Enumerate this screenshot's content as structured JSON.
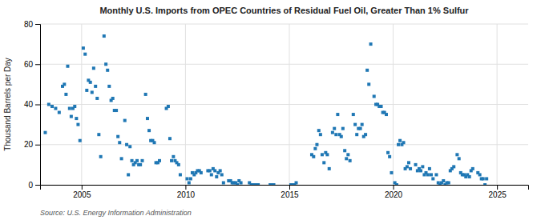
{
  "chart_data": {
    "type": "scatter",
    "title": "Monthly U.S. Imports from OPEC Countries of Residual Fuel Oil, Greater Than 1% Sulfur",
    "y_label": "Thousand Barrels per Day",
    "annotations": [
      "Source: U.S. Energy Information Administration"
    ],
    "marker": "square",
    "grid": true,
    "xlim": [
      2003.0,
      2026.5
    ],
    "xticks": [
      2005,
      2010,
      2015,
      2020,
      2025
    ],
    "ylim": [
      0,
      80
    ],
    "yticks": [
      0,
      20,
      40,
      60,
      80
    ],
    "x": [
      2003.25,
      2003.42,
      2003.58,
      2003.75,
      2003.92,
      2004.08,
      2004.17,
      2004.25,
      2004.33,
      2004.42,
      2004.5,
      2004.58,
      2004.67,
      2004.75,
      2004.83,
      2004.92,
      2005.08,
      2005.17,
      2005.25,
      2005.33,
      2005.42,
      2005.5,
      2005.58,
      2005.67,
      2005.75,
      2005.83,
      2005.92,
      2006.08,
      2006.17,
      2006.25,
      2006.33,
      2006.42,
      2006.5,
      2006.58,
      2006.67,
      2006.75,
      2006.83,
      2006.92,
      2007.08,
      2007.17,
      2007.25,
      2007.33,
      2007.42,
      2007.5,
      2007.58,
      2007.67,
      2007.75,
      2007.83,
      2007.92,
      2008.08,
      2008.17,
      2008.25,
      2008.33,
      2008.42,
      2008.5,
      2008.58,
      2008.67,
      2008.75,
      2009.08,
      2009.17,
      2009.25,
      2009.33,
      2009.42,
      2009.5,
      2009.58,
      2009.67,
      2009.75,
      2010.08,
      2010.17,
      2010.25,
      2010.33,
      2010.42,
      2010.5,
      2010.58,
      2010.67,
      2010.75,
      2011.08,
      2011.17,
      2011.25,
      2011.33,
      2011.42,
      2011.5,
      2011.58,
      2011.67,
      2011.75,
      2011.83,
      2012.08,
      2012.17,
      2012.25,
      2012.33,
      2012.42,
      2012.5,
      2012.58,
      2012.67,
      2013.08,
      2013.17,
      2013.25,
      2013.33,
      2013.42,
      2013.5,
      2014.08,
      2014.17,
      2014.25,
      2015.08,
      2015.17,
      2015.25,
      2015.33,
      2016.08,
      2016.17,
      2016.25,
      2016.33,
      2016.42,
      2016.5,
      2016.58,
      2016.67,
      2016.75,
      2016.83,
      2016.92,
      2017.08,
      2017.17,
      2017.25,
      2017.33,
      2017.42,
      2017.5,
      2017.58,
      2017.67,
      2017.75,
      2017.83,
      2017.92,
      2018.08,
      2018.17,
      2018.25,
      2018.33,
      2018.42,
      2018.5,
      2018.58,
      2018.67,
      2018.75,
      2018.83,
      2018.92,
      2019.08,
      2019.17,
      2019.25,
      2019.33,
      2019.42,
      2019.5,
      2019.58,
      2019.67,
      2019.75,
      2019.83,
      2019.92,
      2020.08,
      2020.17,
      2020.25,
      2020.33,
      2020.42,
      2020.5,
      2020.58,
      2020.67,
      2020.75,
      2020.83,
      2021.08,
      2021.17,
      2021.25,
      2021.33,
      2021.42,
      2021.5,
      2021.58,
      2021.67,
      2021.75,
      2021.83,
      2021.92,
      2022.08,
      2022.17,
      2022.25,
      2022.33,
      2022.42,
      2022.5,
      2022.58,
      2022.67,
      2022.75,
      2022.83,
      2022.92,
      2023.08,
      2023.17,
      2023.25,
      2023.33,
      2023.42,
      2023.5,
      2023.58,
      2023.67,
      2023.75,
      2023.83,
      2024.08,
      2024.17,
      2024.25,
      2024.33,
      2024.42,
      2024.5
    ],
    "values": [
      26,
      40,
      39,
      38,
      36,
      49,
      50,
      45,
      59,
      38,
      34,
      38,
      39,
      33,
      30,
      22,
      68,
      65,
      47,
      52,
      51,
      46,
      58,
      49,
      43,
      25,
      14,
      74,
      60,
      57,
      49,
      42,
      43,
      37,
      37,
      24,
      21,
      13,
      32,
      20,
      5,
      19,
      12,
      10,
      11,
      12,
      10,
      10,
      12,
      45,
      33,
      27,
      22,
      22,
      21,
      11,
      11,
      12,
      38,
      39,
      23,
      12,
      14,
      12,
      11,
      10,
      5,
      3,
      1,
      3,
      6,
      5,
      6,
      7,
      7,
      6,
      7,
      7,
      5,
      8,
      7,
      4,
      6,
      7,
      5,
      1,
      2,
      2,
      1,
      1,
      1,
      0,
      2,
      1,
      1,
      0,
      0,
      0,
      0,
      0,
      0,
      0,
      0,
      0,
      0,
      0,
      1,
      15,
      14,
      18,
      20,
      27,
      25,
      15,
      11,
      16,
      15,
      8,
      26,
      28,
      25,
      35,
      25,
      24,
      28,
      17,
      13,
      15,
      12,
      35,
      30,
      25,
      28,
      28,
      30,
      24,
      25,
      57,
      50,
      70,
      44,
      40,
      40,
      39,
      39,
      36,
      36,
      35,
      16,
      14,
      6,
      1,
      0,
      20,
      22,
      20,
      21,
      8,
      9,
      11,
      8,
      10,
      7,
      8,
      7,
      9,
      5,
      6,
      5,
      8,
      5,
      3,
      5,
      1,
      0,
      1,
      2,
      0,
      1,
      1,
      7,
      8,
      9,
      15,
      13,
      6,
      5,
      5,
      4,
      5,
      4,
      7,
      8,
      6,
      5,
      3,
      3,
      0,
      3
    ]
  }
}
